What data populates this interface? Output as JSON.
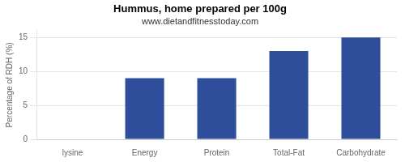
{
  "chart_data": {
    "type": "bar",
    "title": "Hummus, home prepared per 100g",
    "subtitle": "www.dietandfitnesstoday.com",
    "ylabel": "Percentage of RDH (%)",
    "categories": [
      "lysine",
      "Energy",
      "Protein",
      "Total-Fat",
      "Carbohydrate"
    ],
    "values": [
      0,
      9,
      9,
      13,
      15
    ],
    "color": "#2e4d9b",
    "ylim": [
      0,
      16
    ],
    "yticks": [
      0,
      5,
      10,
      15
    ],
    "grid": true
  }
}
